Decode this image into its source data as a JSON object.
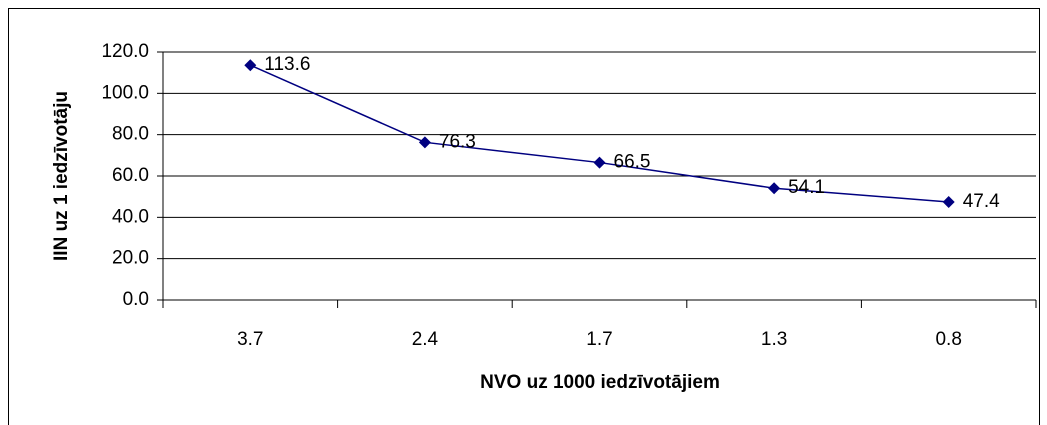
{
  "chart_data": {
    "type": "line",
    "categories": [
      "3.7",
      "2.4",
      "1.7",
      "1.3",
      "0.8"
    ],
    "series": [
      {
        "color": "#000080",
        "values": [
          113.6,
          76.3,
          66.5,
          54.1,
          47.4
        ]
      }
    ],
    "ylim": [
      0,
      120
    ],
    "yticks": [
      {
        "value": 0,
        "label": "0.0"
      },
      {
        "value": 20,
        "label": "20.0"
      },
      {
        "value": 40,
        "label": "40.0"
      },
      {
        "value": 60,
        "label": "60.0"
      },
      {
        "value": 80,
        "label": "80.0"
      },
      {
        "value": 100,
        "label": "100.0"
      },
      {
        "value": 120,
        "label": "120.0"
      }
    ],
    "grid": true,
    "xlabel": "NVO uz 1000 iedzīvotājiem",
    "ylabel": "IIN uz 1 iedzīvotāju"
  }
}
